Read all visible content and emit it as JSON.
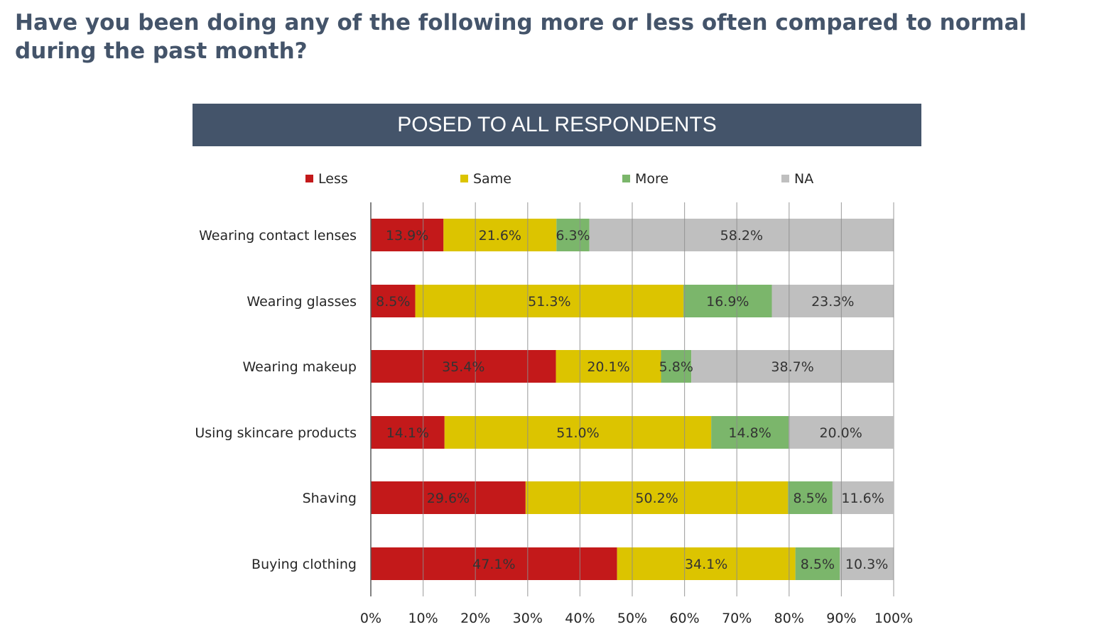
{
  "title": "Have you been doing any of the following more or less often compared to normal during the past month?",
  "banner": "POSED TO ALL RESPONDENTS",
  "chart_data": {
    "type": "bar",
    "orientation": "horizontal",
    "stacked": "percent",
    "categories": [
      "Wearing contact lenses",
      "Wearing glasses",
      "Wearing makeup",
      "Using skincare products",
      "Shaving",
      "Buying clothing"
    ],
    "series": [
      {
        "name": "Less",
        "color": "#c3191a",
        "values": [
          13.9,
          8.5,
          35.4,
          14.1,
          29.6,
          47.1
        ]
      },
      {
        "name": "Same",
        "color": "#dcc400",
        "values": [
          21.6,
          51.3,
          20.1,
          51.0,
          50.2,
          34.1
        ]
      },
      {
        "name": "More",
        "color": "#7bb66b",
        "values": [
          6.3,
          16.9,
          5.8,
          14.8,
          8.5,
          8.5
        ]
      },
      {
        "name": "NA",
        "color": "#bfbfbf",
        "values": [
          58.2,
          23.3,
          38.7,
          20.0,
          11.6,
          10.3
        ]
      }
    ],
    "xlim": [
      0,
      100
    ],
    "xticks": [
      "0%",
      "10%",
      "20%",
      "30%",
      "40%",
      "50%",
      "60%",
      "70%",
      "80%",
      "90%",
      "100%"
    ],
    "grid": true,
    "legend": "top"
  }
}
